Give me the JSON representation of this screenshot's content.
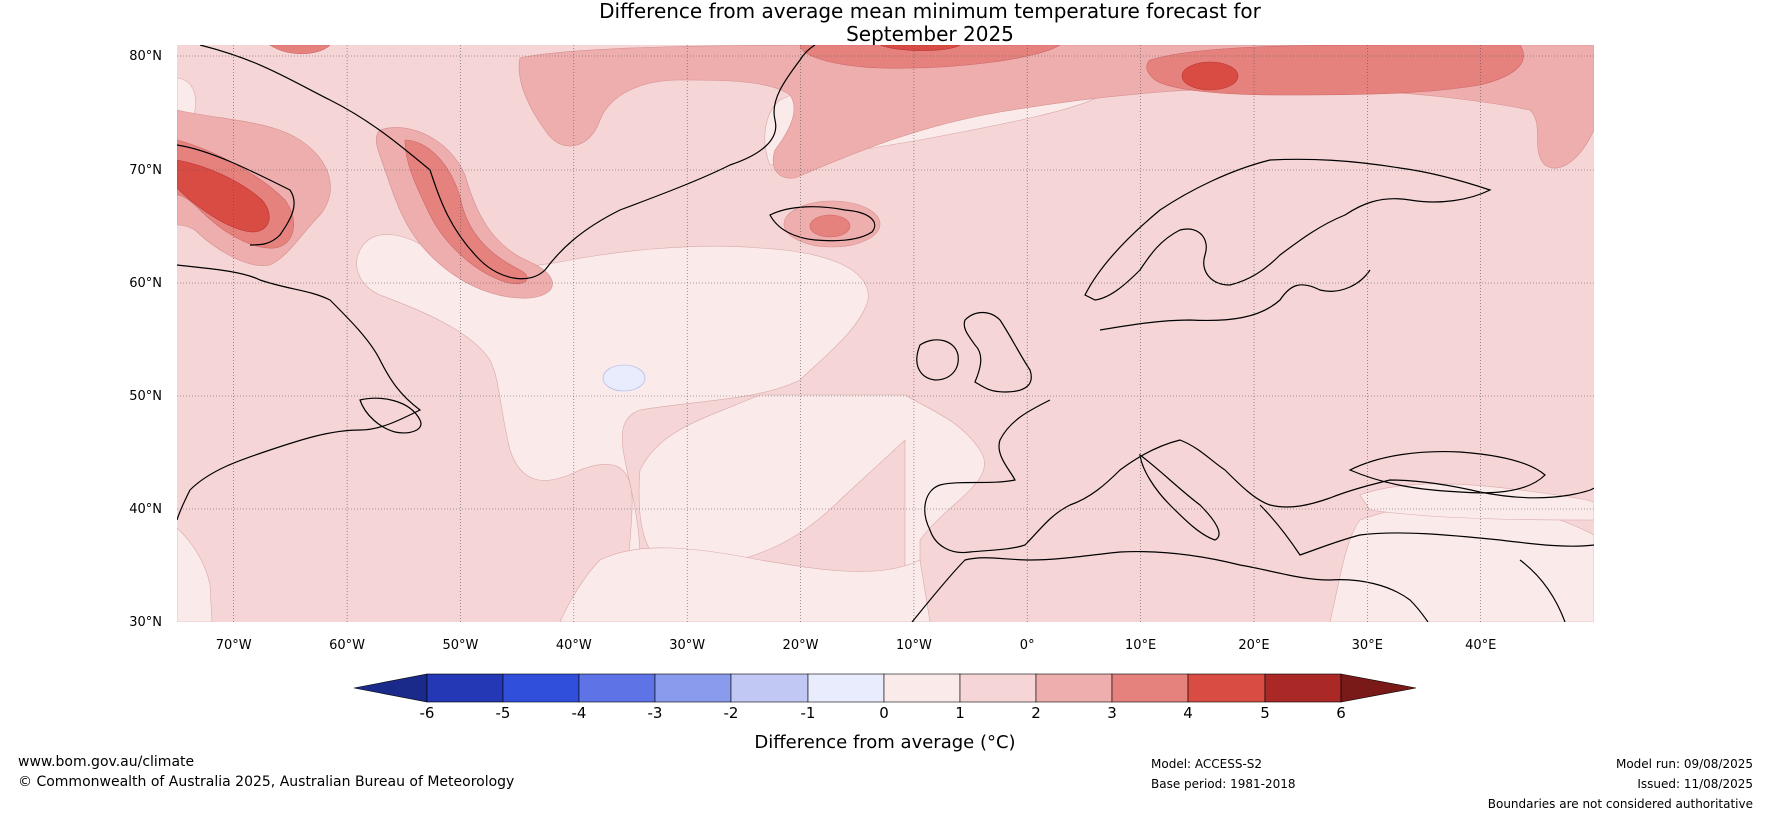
{
  "title": {
    "line1": "Difference from average mean minimum temperature forecast for",
    "line2": "September 2025"
  },
  "map": {
    "lat_labels": [
      "80°N",
      "70°N",
      "60°N",
      "50°N",
      "40°N",
      "30°N"
    ],
    "lon_labels": [
      "70°W",
      "60°W",
      "50°W",
      "40°W",
      "30°W",
      "20°W",
      "10°W",
      "0°",
      "10°E",
      "20°E",
      "30°E",
      "40°E"
    ],
    "lat_range": [
      30,
      81
    ],
    "lon_range": [
      -75,
      50
    ],
    "ocean_anomaly_band": "0–1",
    "land_anomaly_band": "1–2"
  },
  "colorbar": {
    "label": "Difference from average (°C)",
    "ticks": [
      "-6",
      "-5",
      "-4",
      "-3",
      "-2",
      "-1",
      "0",
      "1",
      "2",
      "3",
      "4",
      "5",
      "6"
    ],
    "colors": {
      "below_-6": "#1a2a8a",
      "-6_-5": "#2437b5",
      "-5_-4": "#3050dc",
      "-4_-3": "#5e73e6",
      "-3_-2": "#8a9aec",
      "-2_-1": "#c1c8f4",
      "-1_0": "#e8ecfc",
      "0_1": "#fbeaea",
      "1_2": "#f5d5d5",
      "2_3": "#eeaeae",
      "3_4": "#e5827e",
      "4_5": "#d94c44",
      "5_6": "#aa2826",
      "above_6": "#7a1a18"
    }
  },
  "footer": {
    "website": "www.bom.gov.au/climate",
    "copyright": "© Commonwealth of Australia 2025, Australian Bureau of Meteorology",
    "model": "Model: ACCESS-S2",
    "base_period": "Base period: 1981-2018",
    "model_run": "Model run: 09/08/2025",
    "issued": "Issued: 11/08/2025",
    "disclaimer": "Boundaries are not considered authoritative"
  }
}
